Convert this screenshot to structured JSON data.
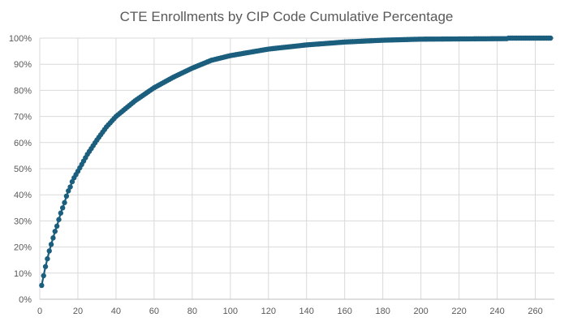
{
  "chart_data": {
    "type": "line",
    "title": "CTE Enrollments by CIP Code Cumulative Percentage",
    "xlabel": "",
    "ylabel": "",
    "xlim": [
      0,
      270
    ],
    "ylim": [
      0,
      100
    ],
    "x_ticks": [
      0,
      20,
      40,
      60,
      80,
      100,
      120,
      140,
      160,
      180,
      200,
      220,
      240,
      260
    ],
    "y_ticks": [
      "0%",
      "10%",
      "20%",
      "30%",
      "40%",
      "50%",
      "60%",
      "70%",
      "80%",
      "90%",
      "100%"
    ],
    "y_tick_values": [
      0,
      10,
      20,
      30,
      40,
      50,
      60,
      70,
      80,
      90,
      100
    ],
    "grid": true,
    "legend": "none",
    "color": "#1b5e7e",
    "point_count": 268,
    "series": [
      {
        "name": "Cumulative Percentage",
        "markers": "circle at every integer x from 1 to 268, interpolated between anchors",
        "anchors": [
          [
            1,
            5.3
          ],
          [
            2,
            9
          ],
          [
            3,
            12.5
          ],
          [
            4,
            15.5
          ],
          [
            5,
            18.5
          ],
          [
            6,
            21
          ],
          [
            7,
            23.5
          ],
          [
            8,
            26
          ],
          [
            9,
            28
          ],
          [
            10,
            30.5
          ],
          [
            11,
            33
          ],
          [
            12,
            35
          ],
          [
            13,
            37
          ],
          [
            14,
            39.5
          ],
          [
            15,
            41.5
          ],
          [
            16,
            43
          ],
          [
            17,
            45
          ],
          [
            18,
            46.5
          ],
          [
            20,
            49
          ],
          [
            25,
            55.5
          ],
          [
            30,
            61
          ],
          [
            35,
            66
          ],
          [
            40,
            70
          ],
          [
            50,
            76
          ],
          [
            60,
            81
          ],
          [
            70,
            85
          ],
          [
            80,
            88.5
          ],
          [
            90,
            91.5
          ],
          [
            100,
            93.3
          ],
          [
            120,
            95.8
          ],
          [
            140,
            97.4
          ],
          [
            160,
            98.5
          ],
          [
            180,
            99.2
          ],
          [
            200,
            99.6
          ],
          [
            245,
            99.8
          ],
          [
            246,
            100
          ],
          [
            268,
            100
          ]
        ]
      }
    ]
  }
}
